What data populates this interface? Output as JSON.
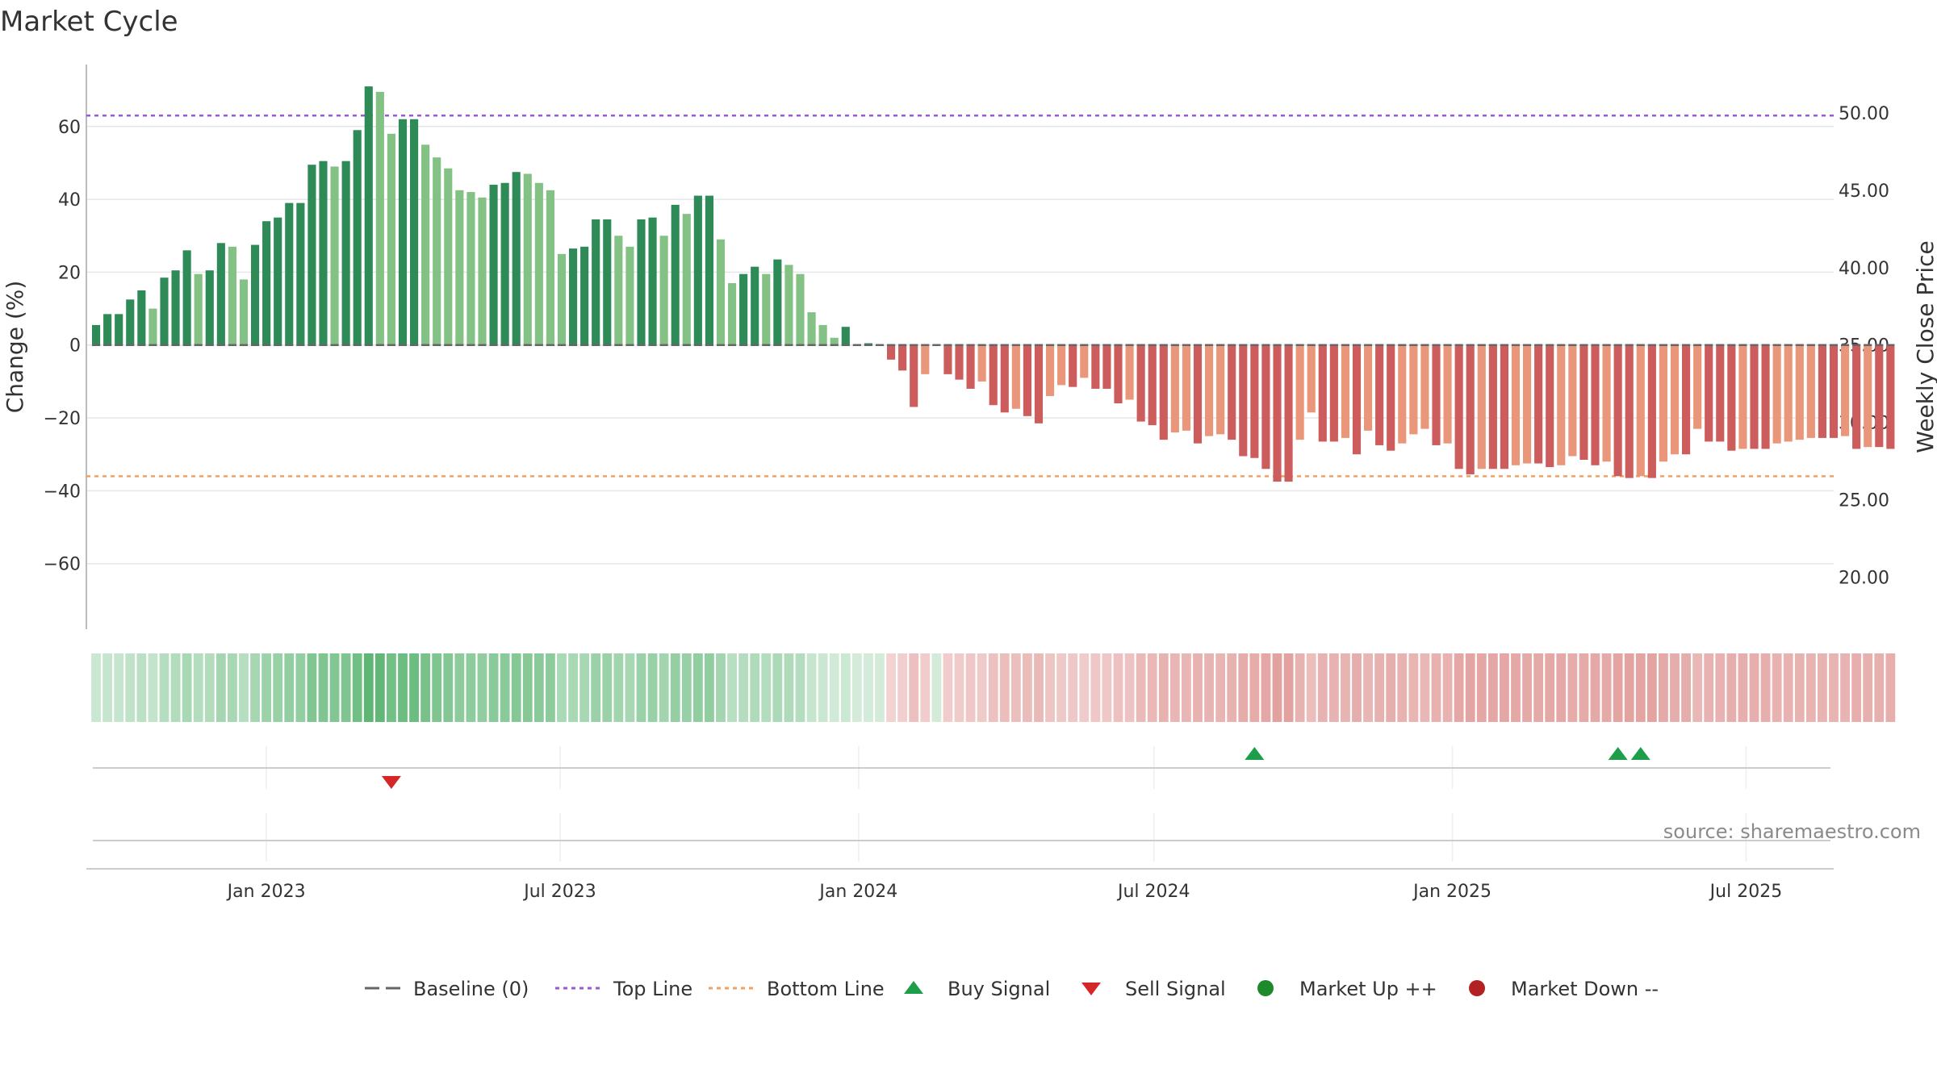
{
  "chart_data": {
    "type": "bar",
    "title": "Market Cycle",
    "ylabel": "Change (%)",
    "y2label": "Weekly Close Price",
    "source": "source: sharemaestro.com",
    "ylim": [
      -78,
      77
    ],
    "y_ticks": [
      "60",
      "40",
      "20",
      "0",
      "−20",
      "−40",
      "−60"
    ],
    "y_tick_values": [
      60,
      40,
      20,
      0,
      -20,
      -40,
      -60
    ],
    "y2_ticks": [
      "50.00",
      "45.00",
      "40.00",
      "35.00",
      "30.00",
      "25.00",
      "20.00"
    ],
    "y2_tick_values": [
      50,
      45,
      40,
      35,
      30,
      25,
      20
    ],
    "x_ticks": [
      "Jan 2023",
      "Jul 2023",
      "Jan 2024",
      "Jul 2024",
      "Jan 2025",
      "Jul 2025"
    ],
    "x_tick_dates": [
      "2023-01-01",
      "2023-07-01",
      "2024-01-01",
      "2024-07-01",
      "2025-01-01",
      "2025-07-01"
    ],
    "x_start": "2022-09-12",
    "x_end": "2025-08-24",
    "week_start": "2022-09-18",
    "top_line": 63,
    "bottom_line": -36,
    "values": [
      5.5,
      8.5,
      8.5,
      12.5,
      15,
      10,
      18.5,
      20.5,
      26,
      19.5,
      20.5,
      28,
      27,
      18,
      27.5,
      34,
      35,
      39,
      39,
      49.5,
      50.5,
      49,
      50.5,
      59,
      71,
      69.5,
      58,
      62,
      62,
      55,
      51.5,
      48.5,
      42.5,
      42,
      40.5,
      44,
      44.5,
      47.5,
      47,
      44.5,
      42.5,
      25,
      26.5,
      27,
      34.5,
      34.5,
      30,
      27,
      34.5,
      35,
      30,
      38.5,
      36,
      41,
      41,
      29,
      17,
      19.5,
      21.5,
      19.5,
      23.5,
      22,
      19.5,
      9,
      5.5,
      2,
      5,
      0,
      0.5,
      0,
      -4,
      -7,
      -17,
      -8,
      0,
      -8,
      -9.5,
      -12,
      -10,
      -16.5,
      -18.5,
      -17.5,
      -19.5,
      -21.5,
      -14,
      -11,
      -11.5,
      -9,
      -12,
      -12,
      -16,
      -15,
      -21,
      -22,
      -26,
      -24,
      -23.5,
      -27,
      -25,
      -24.5,
      -26,
      -30.5,
      -31,
      -34,
      -37.5,
      -37.5,
      -26,
      -18.5,
      -26.5,
      -26.5,
      -25.5,
      -30,
      -23.5,
      -27.5,
      -29,
      -27,
      -24.5,
      -23,
      -27.5,
      -27,
      -34,
      -35.5,
      -34,
      -34,
      -34,
      -33,
      -32.5,
      -32.5,
      -33.5,
      -33,
      -30.5,
      -31.5,
      -33,
      -32,
      -36,
      -36.5,
      -36,
      -36.5,
      -32,
      -30,
      -30,
      -23,
      -26.5,
      -26.5,
      -29,
      -28.5,
      -28.5,
      -28.5,
      -27,
      -26.5,
      -26,
      -25.5,
      -25.5,
      -25.5,
      -25,
      -28.5,
      -28,
      -28,
      -28.5
    ],
    "buy_signals": [
      "2024-09-01",
      "2025-04-13",
      "2025-04-27"
    ],
    "sell_signals": [
      "2023-03-19"
    ]
  },
  "legend": {
    "items": [
      {
        "label": "Baseline (0)",
        "symbol": "dash",
        "color": "#666666"
      },
      {
        "label": "Top Line",
        "symbol": "dot-line",
        "color": "#9a59d6"
      },
      {
        "label": "Bottom Line",
        "symbol": "dot-line",
        "color": "#f0a060"
      },
      {
        "label": "Buy Signal",
        "symbol": "triangle-up",
        "color": "#1e9e4a"
      },
      {
        "label": "Sell Signal",
        "symbol": "triangle-down",
        "color": "#d62728"
      },
      {
        "label": "Market Up ++",
        "symbol": "circle",
        "color": "#1f8a2a"
      },
      {
        "label": "Market Down --",
        "symbol": "circle",
        "color": "#b22222"
      }
    ]
  },
  "colors": {
    "green_dark": "#2e8b57",
    "green_light": "#84c184",
    "red_dark": "#cd5c5c",
    "red_light": "#e9967a",
    "top_line": "#9a59d6",
    "bottom_line": "#f0a060",
    "baseline": "#666666",
    "buy": "#1e9e4a",
    "sell": "#d62728"
  }
}
